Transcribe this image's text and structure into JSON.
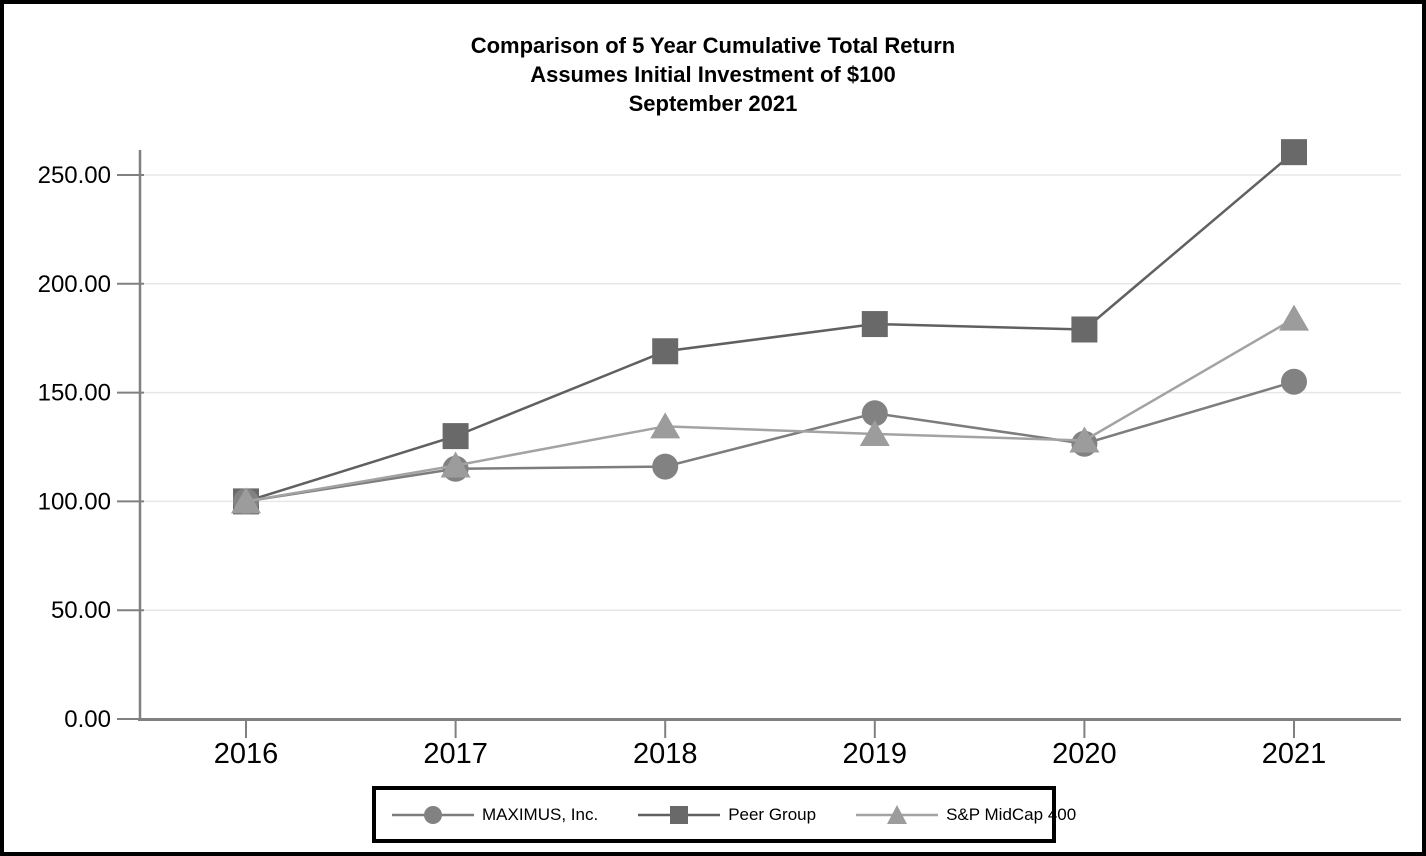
{
  "page": {
    "background": "#ffffff",
    "border_color": "#000000"
  },
  "chart_data": {
    "type": "line",
    "title_lines": [
      "Comparison of 5 Year Cumulative Total Return",
      "Assumes Initial Investment of $100",
      "September 2021"
    ],
    "xlabel": "",
    "ylabel": "",
    "categories": [
      "2016",
      "2017",
      "2018",
      "2019",
      "2020",
      "2021"
    ],
    "series": [
      {
        "name": "MAXIMUS, Inc.",
        "marker": "circle",
        "marker_color": "#828282",
        "line_color": "#7d7d7d",
        "values": [
          100.0,
          115.0,
          116.0,
          140.5,
          126.5,
          155.0
        ]
      },
      {
        "name": "Peer Group",
        "marker": "square",
        "marker_color": "#696969",
        "line_color": "#606060",
        "values": [
          100.0,
          130.0,
          169.0,
          181.5,
          179.0,
          260.5
        ]
      },
      {
        "name": "S&P MidCap 400",
        "marker": "triangle",
        "marker_color": "#9c9c9c",
        "line_color": "#a3a3a3",
        "values": [
          100.0,
          116.5,
          134.5,
          131.0,
          128.0,
          184.0
        ]
      }
    ],
    "y_ticks": [
      "0.00",
      "50.00",
      "100.00",
      "150.00",
      "200.00",
      "250.00"
    ],
    "ylim": [
      0,
      261.5
    ],
    "grid": "horizontal",
    "grid_color": "#e7e7e7",
    "axis_color": "#808080",
    "tick_label_color": "#000000",
    "legend_position": "bottom",
    "legend_border_color": "#000000"
  }
}
